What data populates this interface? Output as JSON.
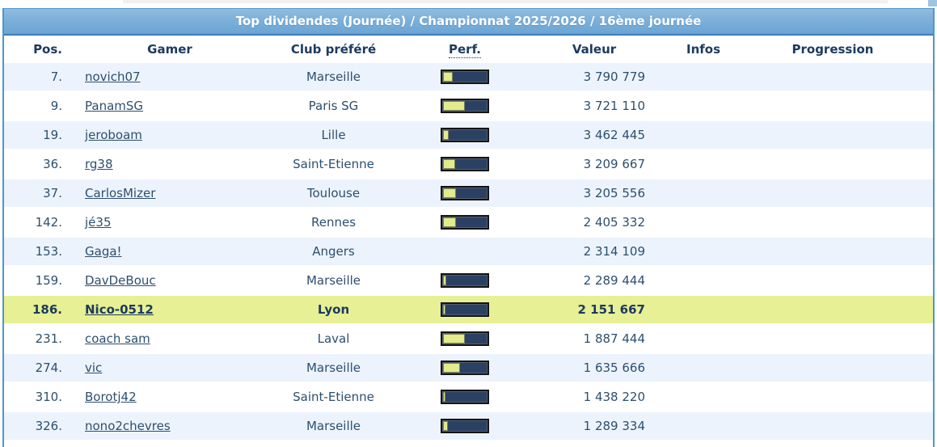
{
  "title_bar": {
    "title": "Top dividendes (Journée) / Championnat 2025/2026 / 16ème journée"
  },
  "columns": [
    {
      "label": "Pos."
    },
    {
      "label": "Gamer"
    },
    {
      "label": "Club préféré"
    },
    {
      "label": "Perf."
    },
    {
      "label": "Valeur"
    },
    {
      "label": "Infos"
    },
    {
      "label": "Progression"
    }
  ],
  "rows": [
    {
      "pos": "7.",
      "gamer": "novich07",
      "club": "Marseille",
      "perf_pct": 22,
      "valeur": "3 790 779",
      "highlight": false
    },
    {
      "pos": "9.",
      "gamer": "PanamSG",
      "club": "Paris SG",
      "perf_pct": 48,
      "valeur": "3 721 110",
      "highlight": false
    },
    {
      "pos": "19.",
      "gamer": "jeroboam",
      "club": "Lille",
      "perf_pct": 13,
      "valeur": "3 462 445",
      "highlight": false
    },
    {
      "pos": "36.",
      "gamer": "rg38",
      "club": "Saint-Etienne",
      "perf_pct": 26,
      "valeur": "3 209 667",
      "highlight": false
    },
    {
      "pos": "37.",
      "gamer": "CarlosMizer",
      "club": "Toulouse",
      "perf_pct": 28,
      "valeur": "3 205 556",
      "highlight": false
    },
    {
      "pos": "142.",
      "gamer": "jé35",
      "club": "Rennes",
      "perf_pct": 28,
      "valeur": "2 405 332",
      "highlight": false
    },
    {
      "pos": "153.",
      "gamer": "Gaga!",
      "club": "Angers",
      "perf_pct": null,
      "valeur": "2 314 109",
      "highlight": false
    },
    {
      "pos": "159.",
      "gamer": "DavDeBouc",
      "club": "Marseille",
      "perf_pct": 8,
      "valeur": "2 289 444",
      "highlight": false
    },
    {
      "pos": "186.",
      "gamer": "Nico-0512",
      "club": "Lyon",
      "perf_pct": 5,
      "valeur": "2 151 667",
      "highlight": true
    },
    {
      "pos": "231.",
      "gamer": "coach sam",
      "club": "Laval",
      "perf_pct": 48,
      "valeur": "1 887 444",
      "highlight": false
    },
    {
      "pos": "274.",
      "gamer": "vic",
      "club": "Marseille",
      "perf_pct": 38,
      "valeur": "1 635 666",
      "highlight": false
    },
    {
      "pos": "310.",
      "gamer": "Borotj42",
      "club": "Saint-Etienne",
      "perf_pct": 6,
      "valeur": "1 438 220",
      "highlight": false
    },
    {
      "pos": "326.",
      "gamer": "nono2chevres",
      "club": "Marseille",
      "perf_pct": 10,
      "valeur": "1 289 334",
      "highlight": false
    }
  ],
  "colors": {
    "title_bar_blue": "#6aa5d4",
    "table_border_blue": "#5693c8",
    "row_alt_blue": "#ecf3fc",
    "highlight_row_yellow": "#e7f094",
    "bar_navy": "#2b4164",
    "bar_fill_yellow": "#e3eb8b",
    "header_text_navy": "#1c3a5e",
    "row_text_blue": "#2d4f6e"
  }
}
